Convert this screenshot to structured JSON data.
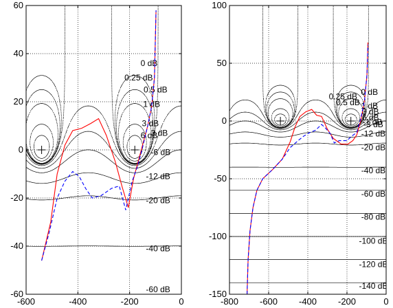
{
  "chart_data": [
    {
      "type": "line",
      "title": "",
      "xlabel": "",
      "ylabel": "",
      "xlim": [
        -600,
        0
      ],
      "ylim": [
        -60,
        60
      ],
      "xticks": [
        -600,
        -400,
        -200,
        0
      ],
      "yticks": [
        -60,
        -40,
        -20,
        0,
        20,
        40,
        60
      ],
      "grid": true,
      "critical_points": [
        [
          -540,
          0
        ],
        [
          -180,
          0
        ]
      ],
      "contour_labels": [
        {
          "text": "0 dB",
          "x": -125,
          "y": 36
        },
        {
          "text": "0.25 dB",
          "x": -165,
          "y": 30
        },
        {
          "text": "0.5 dB",
          "x": -100,
          "y": 25
        },
        {
          "text": "1 dB",
          "x": -115,
          "y": 19
        },
        {
          "text": "3 dB",
          "x": -120,
          "y": 11
        },
        {
          "text": "3 dB",
          "x": -85,
          "y": 7
        },
        {
          "text": "6 dB",
          "x": -125,
          "y": 6
        },
        {
          "text": "-6 dB",
          "x": -80,
          "y": -1
        },
        {
          "text": "-12 dB",
          "x": -90,
          "y": -11
        },
        {
          "text": "-20 dB",
          "x": -90,
          "y": -21
        },
        {
          "text": "-40 dB",
          "x": -90,
          "y": -41
        },
        {
          "text": "-60 dB",
          "x": -90,
          "y": -58
        }
      ],
      "series": [
        {
          "color": "#ff0000",
          "style": "solid",
          "points": [
            [
              -540,
              -46
            ],
            [
              -505,
              -30
            ],
            [
              -480,
              -10
            ],
            [
              -450,
              2
            ],
            [
              -420,
              8
            ],
            [
              -385,
              9
            ],
            [
              -350,
              11
            ],
            [
              -320,
              13
            ],
            [
              -290,
              6
            ],
            [
              -255,
              -5
            ],
            [
              -230,
              -15
            ],
            [
              -205,
              -24
            ],
            [
              -185,
              -12
            ],
            [
              -170,
              -6
            ],
            [
              -150,
              2
            ],
            [
              -130,
              10
            ],
            [
              -115,
              18
            ],
            [
              -104,
              30
            ],
            [
              -98,
              58
            ]
          ]
        },
        {
          "color": "#0000ff",
          "style": "dashed",
          "points": [
            [
              -540,
              -46
            ],
            [
              -510,
              -34
            ],
            [
              -480,
              -20
            ],
            [
              -450,
              -13
            ],
            [
              -420,
              -9
            ],
            [
              -395,
              -11
            ],
            [
              -370,
              -16
            ],
            [
              -345,
              -20
            ],
            [
              -310,
              -19
            ],
            [
              -270,
              -16
            ],
            [
              -240,
              -15
            ],
            [
              -215,
              -25
            ],
            [
              -190,
              -13
            ],
            [
              -170,
              -7
            ],
            [
              -150,
              1
            ],
            [
              -130,
              10
            ],
            [
              -115,
              18
            ],
            [
              -104,
              30
            ],
            [
              -98,
              58
            ]
          ]
        }
      ]
    },
    {
      "type": "line",
      "title": "",
      "xlabel": "",
      "ylabel": "",
      "xlim": [
        -800,
        0
      ],
      "ylim": [
        -150,
        100
      ],
      "xticks": [
        -800,
        -600,
        -400,
        -200,
        0
      ],
      "yticks": [
        -150,
        -100,
        -50,
        0,
        50,
        100
      ],
      "grid": true,
      "critical_points": [
        [
          -540,
          0
        ],
        [
          -180,
          0
        ]
      ],
      "contour_labels": [
        {
          "text": "0 dB",
          "x": -85,
          "y": 25
        },
        {
          "text": "0.25 dB",
          "x": -220,
          "y": 21
        },
        {
          "text": "0.5 dB",
          "x": -195,
          "y": 16
        },
        {
          "text": "1 dB",
          "x": -85,
          "y": 13
        },
        {
          "text": "3 dB",
          "x": -80,
          "y": 8
        },
        {
          "text": "6 dB",
          "x": -80,
          "y": 3
        },
        {
          "text": "-1 dB",
          "x": -70,
          "y": -1
        },
        {
          "text": "-3 dB",
          "x": -65,
          "y": -3
        },
        {
          "text": "-12 dB",
          "x": -65,
          "y": -11
        },
        {
          "text": "-20 dB",
          "x": -65,
          "y": -23
        },
        {
          "text": "-40 dB",
          "x": -65,
          "y": -43
        },
        {
          "text": "-60 dB",
          "x": -65,
          "y": -63
        },
        {
          "text": "-80 dB",
          "x": -65,
          "y": -83
        },
        {
          "text": "-100 dB",
          "x": -65,
          "y": -104
        },
        {
          "text": "-120 dB",
          "x": -65,
          "y": -124
        },
        {
          "text": "-140 dB",
          "x": -65,
          "y": -143
        }
      ],
      "series": [
        {
          "color": "#ff0000",
          "style": "solid",
          "points": [
            [
              -710,
              -150
            ],
            [
              -705,
              -120
            ],
            [
              -695,
              -95
            ],
            [
              -680,
              -75
            ],
            [
              -660,
              -60
            ],
            [
              -630,
              -50
            ],
            [
              -580,
              -42
            ],
            [
              -530,
              -33
            ],
            [
              -490,
              -18
            ],
            [
              -465,
              -5
            ],
            [
              -440,
              4
            ],
            [
              -410,
              8
            ],
            [
              -380,
              10
            ],
            [
              -355,
              5
            ],
            [
              -330,
              4
            ],
            [
              -300,
              -7
            ],
            [
              -270,
              -15
            ],
            [
              -230,
              -20
            ],
            [
              -195,
              -20
            ],
            [
              -170,
              -17
            ],
            [
              -150,
              -12
            ],
            [
              -130,
              0
            ],
            [
              -110,
              18
            ],
            [
              -98,
              40
            ],
            [
              -93,
              68
            ]
          ]
        },
        {
          "color": "#0000ff",
          "style": "dashed",
          "points": [
            [
              -710,
              -150
            ],
            [
              -705,
              -120
            ],
            [
              -695,
              -95
            ],
            [
              -680,
              -75
            ],
            [
              -660,
              -60
            ],
            [
              -630,
              -50
            ],
            [
              -580,
              -42
            ],
            [
              -530,
              -33
            ],
            [
              -490,
              -23
            ],
            [
              -450,
              -17
            ],
            [
              -420,
              -13
            ],
            [
              -390,
              -10
            ],
            [
              -360,
              -8
            ],
            [
              -330,
              -3
            ],
            [
              -310,
              -6
            ],
            [
              -285,
              -11
            ],
            [
              -265,
              -19
            ],
            [
              -240,
              -17
            ],
            [
              -200,
              -17
            ],
            [
              -175,
              -13
            ],
            [
              -150,
              -10
            ],
            [
              -130,
              2
            ],
            [
              -110,
              18
            ],
            [
              -98,
              40
            ],
            [
              -93,
              66
            ]
          ]
        }
      ]
    }
  ]
}
